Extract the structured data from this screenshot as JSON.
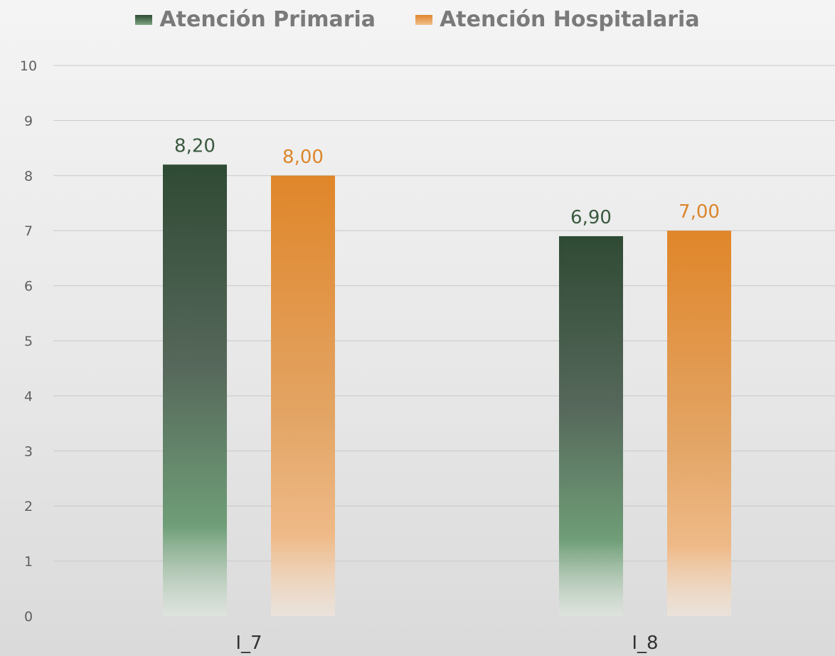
{
  "chart_data": {
    "type": "bar",
    "categories": [
      "I_7",
      "I_8"
    ],
    "series": [
      {
        "name": "Atención Primaria",
        "values": [
          8.2,
          6.9
        ],
        "labels": [
          "8,20",
          "6,90"
        ],
        "color": "#2f4a34"
      },
      {
        "name": "Atención Hospitalaria",
        "values": [
          8.0,
          7.0
        ],
        "labels": [
          "8,00",
          "7,00"
        ],
        "color": "#e0862a"
      }
    ],
    "yticks": [
      "0",
      "1",
      "2",
      "3",
      "4",
      "5",
      "6",
      "7",
      "8",
      "9",
      "10"
    ],
    "ylim": [
      0,
      10
    ],
    "grid": true,
    "legend_position": "top"
  }
}
